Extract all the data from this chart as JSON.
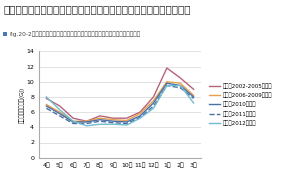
{
  "title": "一戸建て住宅の月別エネルギー消費量（電力・ガス・灯油）の推移",
  "subtitle_square_color": "#4a7ab5",
  "subtitle_text": "fig.20-2：一戸建て住宅の月別エネルギー消費量（電力・ガス・灯油）の推移",
  "xlabel_months": [
    "4月",
    "5月",
    "6月",
    "7月",
    "8月",
    "9月",
    "10月",
    "11月",
    "12月",
    "1月",
    "2月",
    "3月"
  ],
  "ylabel": "エネルギー消費量(GJ)",
  "ylim": [
    0,
    14
  ],
  "yticks": [
    0,
    2,
    4,
    6,
    8,
    10,
    12,
    14
  ],
  "series": [
    {
      "label": "前期（2002-2005年度）",
      "color": "#b5637a",
      "linestyle": "-",
      "linewidth": 1.0,
      "values": [
        7.8,
        6.8,
        5.2,
        4.8,
        5.5,
        5.2,
        5.2,
        6.0,
        8.0,
        11.8,
        10.5,
        9.0
      ]
    },
    {
      "label": "中期（2006-2009年度）",
      "color": "#e8a04a",
      "linestyle": "-",
      "linewidth": 1.0,
      "values": [
        7.0,
        6.0,
        4.8,
        4.8,
        5.2,
        5.0,
        4.9,
        5.8,
        7.5,
        10.0,
        9.8,
        8.2
      ]
    },
    {
      "label": "後期（2010年度）",
      "color": "#4a6fa5",
      "linestyle": "-",
      "linewidth": 1.0,
      "values": [
        6.8,
        5.8,
        4.7,
        4.7,
        5.0,
        4.8,
        4.7,
        5.5,
        7.2,
        9.8,
        9.5,
        8.0
      ]
    },
    {
      "label": "後期（2011年度）",
      "color": "#4a6fa5",
      "linestyle": "--",
      "linewidth": 1.0,
      "values": [
        6.5,
        5.5,
        4.5,
        4.5,
        4.8,
        4.6,
        4.5,
        5.3,
        6.8,
        9.5,
        9.2,
        7.8
      ]
    },
    {
      "label": "後期（2012年度）",
      "color": "#70bcd1",
      "linestyle": "-",
      "linewidth": 1.0,
      "values": [
        8.0,
        6.3,
        4.8,
        4.2,
        4.4,
        4.4,
        4.3,
        5.2,
        6.5,
        9.5,
        9.5,
        7.2
      ]
    }
  ],
  "background_color": "#ffffff",
  "grid_color": "#cccccc",
  "title_fontsize": 7.5,
  "subtitle_fontsize": 4.2,
  "axis_fontsize": 4.5,
  "legend_fontsize": 4.0,
  "ylabel_fontsize": 4.0
}
